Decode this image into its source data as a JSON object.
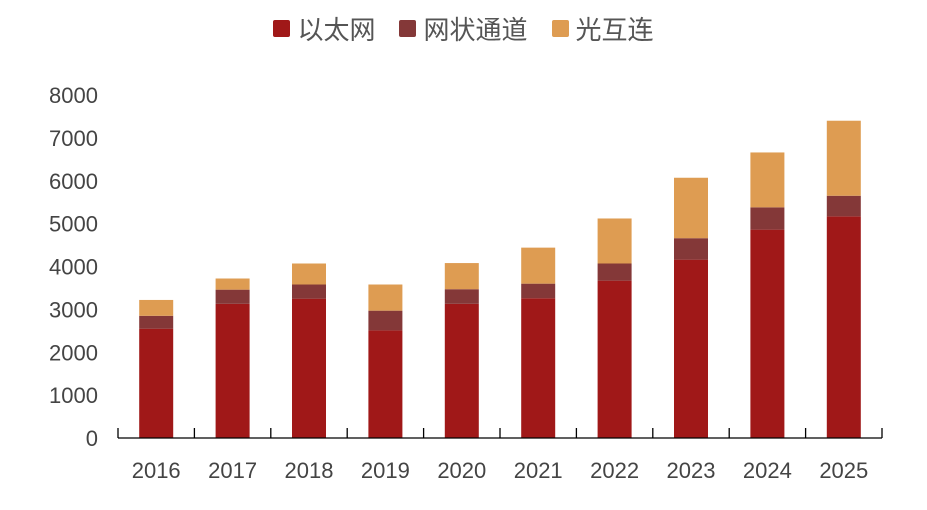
{
  "chart_data": {
    "type": "bar",
    "stacked": true,
    "categories": [
      "2016",
      "2017",
      "2018",
      "2019",
      "2020",
      "2021",
      "2022",
      "2023",
      "2024",
      "2025"
    ],
    "series": [
      {
        "name": "以太网",
        "color": "#A01818",
        "values": [
          2550,
          3130,
          3250,
          2510,
          3130,
          3260,
          3670,
          4160,
          4860,
          5170
        ]
      },
      {
        "name": "网状通道",
        "color": "#843838",
        "values": [
          300,
          330,
          330,
          460,
          340,
          340,
          400,
          500,
          520,
          480
        ]
      },
      {
        "name": "光互连",
        "color": "#DE9C52",
        "values": [
          370,
          260,
          490,
          610,
          610,
          840,
          1050,
          1410,
          1280,
          1750
        ]
      }
    ],
    "ylim": [
      0,
      8000
    ],
    "yticks": [
      0,
      1000,
      2000,
      3000,
      4000,
      5000,
      6000,
      7000,
      8000
    ],
    "grid": false,
    "legend_position": "top"
  }
}
